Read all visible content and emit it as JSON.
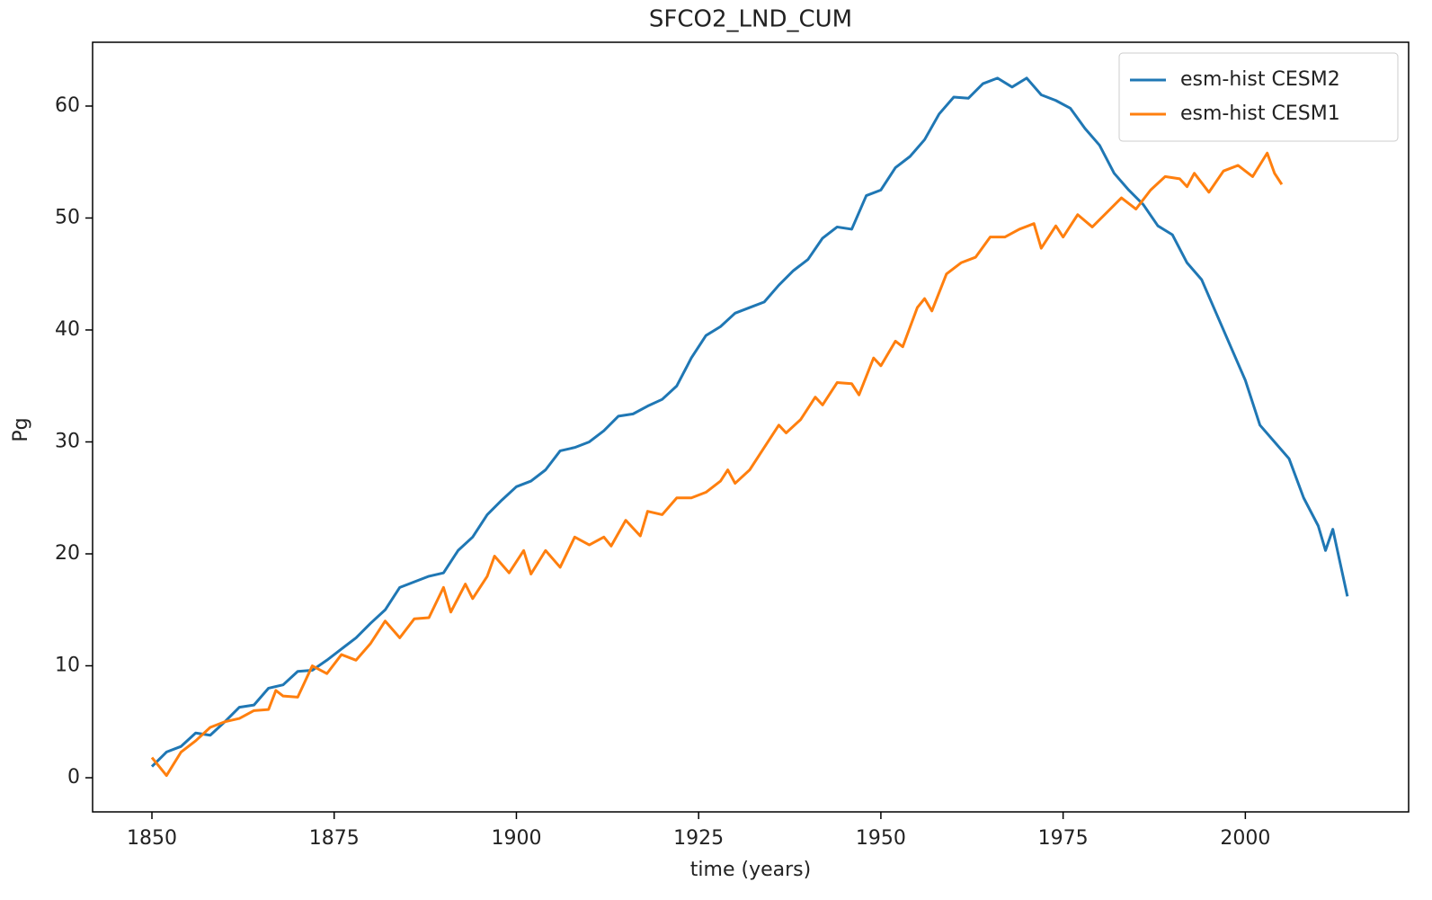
{
  "chart_data": {
    "type": "line",
    "title": "SFCO2_LND_CUM",
    "xlabel": "time (years)",
    "ylabel": "Pg",
    "xlim": [
      1841.86,
      2022.4
    ],
    "ylim": [
      -3.05,
      65.7
    ],
    "xticks": [
      1850,
      1875,
      1900,
      1925,
      1950,
      1975,
      2000
    ],
    "yticks": [
      0,
      10,
      20,
      30,
      40,
      50,
      60
    ],
    "legend": "upper right",
    "grid": false,
    "series": [
      {
        "name": "esm-hist CESM2",
        "color": "#1f77b4",
        "x": [
          1850,
          1852,
          1854,
          1856,
          1858,
          1860,
          1862,
          1864,
          1866,
          1868,
          1870,
          1872,
          1874,
          1876,
          1878,
          1880,
          1882,
          1884,
          1886,
          1888,
          1890,
          1892,
          1894,
          1896,
          1898,
          1900,
          1902,
          1904,
          1906,
          1908,
          1910,
          1912,
          1914,
          1916,
          1918,
          1920,
          1922,
          1924,
          1926,
          1928,
          1930,
          1932,
          1934,
          1936,
          1938,
          1940,
          1942,
          1944,
          1946,
          1948,
          1950,
          1952,
          1954,
          1956,
          1958,
          1960,
          1962,
          1964,
          1966,
          1968,
          1970,
          1972,
          1974,
          1976,
          1978,
          1980,
          1982,
          1984,
          1986,
          1988,
          1990,
          1992,
          1994,
          1996,
          1998,
          2000,
          2002,
          2004,
          2006,
          2008,
          2010,
          2011,
          2012,
          2014
        ],
        "values": [
          1,
          2.3,
          2.8,
          4,
          3.8,
          5,
          6.3,
          6.5,
          8,
          8.3,
          9.5,
          9.6,
          10.5,
          11.5,
          12.5,
          13.8,
          15,
          17,
          17.5,
          18,
          18.3,
          20.3,
          21.5,
          23.5,
          24.8,
          26,
          26.5,
          27.5,
          29.2,
          29.5,
          30,
          31,
          32.3,
          32.5,
          33.2,
          33.8,
          35,
          37.5,
          39.5,
          40.3,
          41.5,
          42,
          42.5,
          44,
          45.3,
          46.3,
          48.2,
          49.2,
          49,
          52,
          52.5,
          54.5,
          55.5,
          57,
          59.3,
          60.8,
          60.7,
          62,
          62.5,
          61.7,
          62.5,
          61,
          60.5,
          59.8,
          58,
          56.5,
          54,
          52.5,
          51.2,
          49.3,
          48.5,
          46,
          44.5,
          41.5,
          38.5,
          35.5,
          31.5,
          30,
          28.5,
          25,
          22.5,
          20.3,
          22.2,
          16.2
        ]
      },
      {
        "name": "esm-hist CESM1",
        "color": "#ff7f0e",
        "x": [
          1850,
          1852,
          1854,
          1856,
          1858,
          1860,
          1862,
          1864,
          1866,
          1867,
          1868,
          1870,
          1872,
          1874,
          1876,
          1878,
          1880,
          1882,
          1884,
          1886,
          1888,
          1890,
          1891,
          1893,
          1894,
          1896,
          1897,
          1899,
          1901,
          1902,
          1904,
          1906,
          1908,
          1910,
          1912,
          1913,
          1915,
          1917,
          1918,
          1920,
          1922,
          1924,
          1926,
          1928,
          1929,
          1930,
          1932,
          1934,
          1936,
          1937,
          1939,
          1941,
          1942,
          1944,
          1946,
          1947,
          1949,
          1950,
          1952,
          1953,
          1955,
          1956,
          1957,
          1959,
          1961,
          1963,
          1965,
          1967,
          1969,
          1971,
          1972,
          1974,
          1975,
          1977,
          1979,
          1981,
          1983,
          1985,
          1987,
          1989,
          1991,
          1992,
          1993,
          1995,
          1997,
          1999,
          2001,
          2003,
          2004,
          2005
        ],
        "values": [
          1.8,
          0.2,
          2.3,
          3.3,
          4.5,
          5,
          5.3,
          6,
          6.1,
          7.8,
          7.3,
          7.2,
          10,
          9.3,
          11,
          10.5,
          12,
          14,
          12.5,
          14.2,
          14.3,
          17,
          14.8,
          17.3,
          16,
          18,
          19.8,
          18.3,
          20.3,
          18.2,
          20.3,
          18.8,
          21.5,
          20.8,
          21.5,
          20.7,
          23,
          21.6,
          23.8,
          23.5,
          25,
          25,
          25.5,
          26.5,
          27.5,
          26.3,
          27.5,
          29.5,
          31.5,
          30.8,
          32,
          34,
          33.3,
          35.3,
          35.2,
          34.2,
          37.5,
          36.8,
          39,
          38.5,
          42,
          42.8,
          41.7,
          45,
          46,
          46.5,
          48.3,
          48.3,
          49,
          49.5,
          47.3,
          49.3,
          48.3,
          50.3,
          49.2,
          50.5,
          51.8,
          50.8,
          52.5,
          53.7,
          53.5,
          52.8,
          54,
          52.3,
          54.2,
          54.7,
          53.7,
          55.8,
          54,
          53
        ]
      }
    ]
  }
}
